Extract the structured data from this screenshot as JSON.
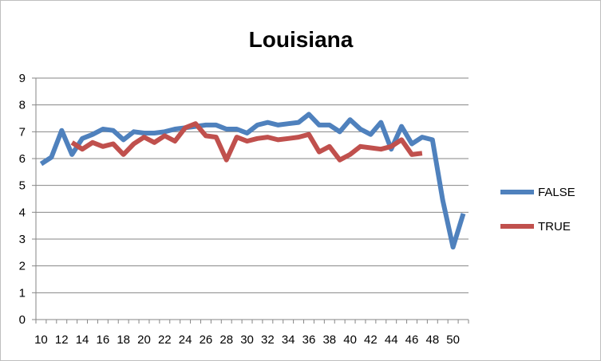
{
  "chart_data": {
    "type": "line",
    "title": "Louisiana",
    "xlabel": "",
    "ylabel": "",
    "xlim": [
      10,
      51
    ],
    "ylim": [
      0,
      9
    ],
    "yticks": [
      0,
      1,
      2,
      3,
      4,
      5,
      6,
      7,
      8,
      9
    ],
    "xticks": [
      10,
      12,
      14,
      16,
      18,
      20,
      22,
      24,
      26,
      28,
      30,
      32,
      34,
      36,
      38,
      40,
      42,
      44,
      46,
      48,
      50
    ],
    "grid": "horizontal",
    "legend_position": "right",
    "series": [
      {
        "name": "FALSE",
        "color": "#4f81bd",
        "x": [
          10,
          11,
          12,
          13,
          14,
          15,
          16,
          17,
          18,
          19,
          20,
          21,
          22,
          23,
          24,
          25,
          26,
          27,
          28,
          29,
          30,
          31,
          32,
          33,
          34,
          35,
          36,
          37,
          38,
          39,
          40,
          41,
          42,
          43,
          44,
          45,
          46,
          47,
          48,
          49,
          50,
          51
        ],
        "y": [
          5.8,
          6.05,
          7.05,
          6.15,
          6.75,
          6.9,
          7.1,
          7.05,
          6.7,
          7.0,
          6.95,
          6.95,
          7.0,
          7.1,
          7.15,
          7.2,
          7.25,
          7.25,
          7.1,
          7.1,
          6.95,
          7.25,
          7.35,
          7.25,
          7.3,
          7.35,
          7.65,
          7.25,
          7.25,
          7.0,
          7.45,
          7.1,
          6.9,
          7.35,
          6.35,
          7.2,
          6.55,
          6.8,
          6.7,
          4.45,
          2.7,
          3.95
        ]
      },
      {
        "name": "TRUE",
        "color": "#c0504d",
        "x": [
          13,
          14,
          15,
          16,
          17,
          18,
          19,
          20,
          21,
          22,
          23,
          24,
          25,
          26,
          27,
          28,
          29,
          30,
          31,
          32,
          33,
          34,
          35,
          36,
          37,
          38,
          39,
          40,
          41,
          42,
          43,
          44,
          45,
          46,
          47
        ],
        "y": [
          6.6,
          6.35,
          6.6,
          6.45,
          6.55,
          6.15,
          6.55,
          6.8,
          6.6,
          6.85,
          6.65,
          7.15,
          7.3,
          6.85,
          6.8,
          5.95,
          6.8,
          6.65,
          6.75,
          6.8,
          6.7,
          6.75,
          6.8,
          6.9,
          6.25,
          6.45,
          5.95,
          6.15,
          6.45,
          6.4,
          6.35,
          6.45,
          6.7,
          6.15,
          6.2
        ]
      }
    ]
  }
}
